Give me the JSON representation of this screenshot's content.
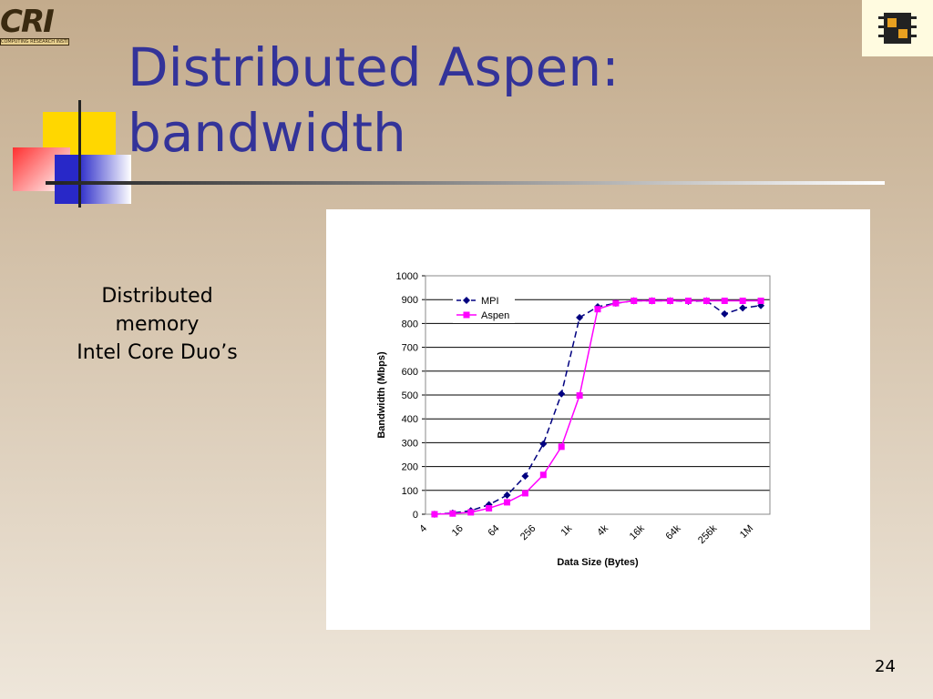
{
  "slide_title_line1": "Distributed Aspen:",
  "slide_title_line2": "bandwidth",
  "side_text": [
    "Distributed",
    "memory",
    "Intel Core Duo’s"
  ],
  "page_number": "24",
  "logo": {
    "letters": "CRI",
    "caption": "COMPUTING RESEARCH INSTITUTE"
  },
  "chart_data": {
    "type": "line",
    "x_label": "Data Size (Bytes)",
    "y_label": "Bandwidth (Mbps)",
    "categories": [
      "4",
      null,
      "16",
      null,
      "64",
      null,
      "256",
      null,
      "1k",
      null,
      "4k",
      null,
      "16k",
      null,
      "64k",
      null,
      "256k",
      null,
      "1M"
    ],
    "series": [
      {
        "name": "MPI",
        "color": "#000080",
        "dashed": true,
        "marker": "diamond",
        "values": [
          0,
          5,
          15,
          40,
          80,
          160,
          295,
          505,
          825,
          870,
          885,
          895,
          895,
          895,
          893,
          895,
          840,
          865,
          875
        ]
      },
      {
        "name": "Aspen",
        "color": "#ff00ff",
        "dashed": false,
        "marker": "square",
        "values": [
          0,
          3,
          8,
          25,
          50,
          88,
          165,
          283,
          498,
          860,
          885,
          895,
          895,
          895,
          895,
          895,
          895,
          895,
          895
        ]
      }
    ],
    "ylim": [
      0,
      1000
    ],
    "yticks": [
      0,
      100,
      200,
      300,
      400,
      500,
      600,
      700,
      800,
      900,
      1000
    ],
    "grid": true,
    "legend": "top-left"
  }
}
